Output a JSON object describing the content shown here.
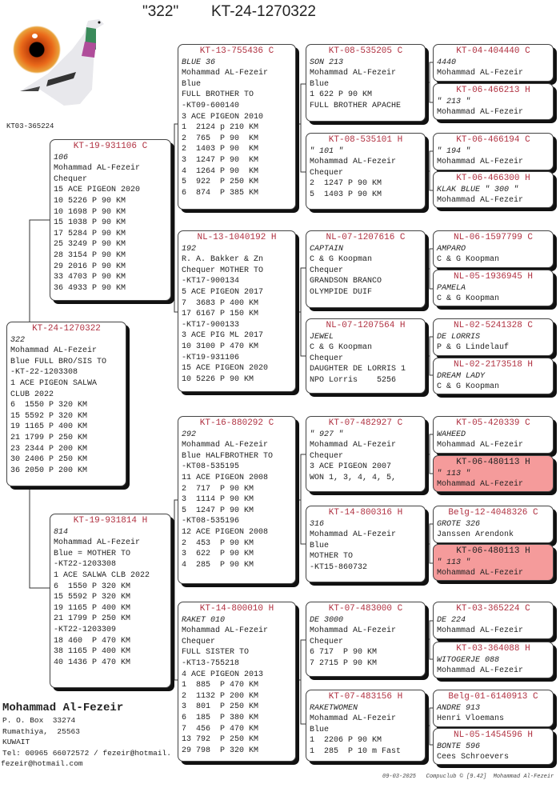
{
  "header": {
    "name": "\"322\"",
    "ring": "KT-24-1270322"
  },
  "photo": {
    "caption": "KT03-365224"
  },
  "pedigree": [
    {
      "id": "subject",
      "lines": [
        "KT-24-1270322",
        "322",
        "Mohammad AL-Fezeir",
        "Blue FULL BRO/SIS TO",
        "-KT-22-1203308",
        "1 ACE PIGEON SALWA",
        "CLUB 2022",
        "6  1550 P 320 KM",
        "15 5592 P 320 KM",
        "19 1165 P 400 KM",
        "21 1799 P 250 KM",
        "23 2344 P 200 KM",
        "30 2406 P 250 KM",
        "36 2050 P 200 KM"
      ]
    },
    {
      "id": "sire",
      "lines": [
        "KT-19-931106 C",
        "106",
        "Mohammad AL-Fezeir",
        "Chequer",
        "15 ACE PIGEON 2020",
        "10 5226 P 90 KM",
        "10 1698 P 90 KM",
        "15 1038 P 90 KM",
        "17 5284 P 90 KM",
        "25 3249 P 90 KM",
        "28 3154 P 90 KM",
        "29 2016 P 90 KM",
        "33 4703 P 90 KM",
        "36 4933 P 90 KM"
      ]
    },
    {
      "id": "dam",
      "lines": [
        "KT-19-931814 H",
        "814",
        "Mohammad AL-Fezeir",
        "Blue = MOTHER TO",
        "-KT22-1203308",
        "1 ACE SALWA CLB 2022",
        "6  1550 P 320 KM",
        "15 5592 P 320 KM",
        "19 1165 P 400 KM",
        "21 1799 P 250 KM",
        "-KT22-1203309",
        "18 460  P 470 KM",
        "38 1165 P 400 KM",
        "40 1436 P 470 KM"
      ]
    },
    {
      "id": "ss",
      "lines": [
        "KT-13-755436 C",
        "BLUE 36",
        "Mohammad AL-Fezeir",
        "Blue",
        "FULL BROTHER TO",
        "-KT09-600140",
        "3 ACE PIGEON 2010",
        "1  2124 p 210 KM",
        "2  765  P 90  KM",
        "2  1403 P 90  KM",
        "3  1247 P 90  KM",
        "4  1264 P 90  KM",
        "5  922  P 250 KM",
        "6  874  P 385 KM"
      ]
    },
    {
      "id": "sd",
      "lines": [
        "NL-13-1040192 H",
        "192",
        "R. A. Bakker & Zn",
        "Chequer MOTHER TO",
        "-KT17-900134",
        "5 ACE PIGEON 2017",
        "7  3683 P 400 KM",
        "17 6167 P 150 KM",
        "-KT17-900133",
        "3 ACE PIG ML 2017",
        "10 3100 P 470 KM",
        "-KT19-931106",
        "15 ACE PIGEON 2020",
        "10 5226 P 90 KM"
      ]
    },
    {
      "id": "ds",
      "lines": [
        "KT-16-880292 C",
        "292",
        "Mohammad AL-Fezeir",
        "Blue HALFBROTHER TO",
        "-KT08-535195",
        "11 ACE PIGEON 2008",
        "2  717  P 90 KM",
        "3  1114 P 90 KM",
        "5  1247 P 90 KM",
        "-KT08-535196",
        "12 ACE PIGEON 2008",
        "2  453  P 90 KM",
        "3  622  P 90 KM",
        "4  285  P 90 KM"
      ]
    },
    {
      "id": "dd",
      "lines": [
        "KT-14-800010 H",
        "RAKET 010",
        "Mohammad AL-Fezeir",
        "Chequer",
        "FULL SISTER TO",
        "-KT13-755218",
        "4 ACE PIGEON 2013",
        "1  885  P 470 KM",
        "2  1132 P 200 KM",
        "3  801  P 250 KM",
        "6  185  P 380 KM",
        "7  456  P 470 KM",
        "13 792  P 250 KM",
        "29 798  P 320 KM"
      ]
    },
    {
      "id": "sss",
      "lines": [
        "KT-08-535205 C",
        "SON 213",
        "Mohammad AL-Fezeir",
        "Blue",
        "1 622 P 90 KM",
        "FULL BROTHER APACHE"
      ]
    },
    {
      "id": "ssd",
      "lines": [
        "KT-08-535101 H",
        "\" 101 \"",
        "Mohammad AL-Fezeir",
        "Chequer",
        "2  1247 P 90 KM",
        "5  1403 P 90 KM"
      ]
    },
    {
      "id": "sds",
      "lines": [
        "NL-07-1207616 C",
        "CAPTAIN",
        "C & G Koopman",
        "Chequer",
        "GRANDSON BRANCO",
        "OLYMPIDE DUIF"
      ]
    },
    {
      "id": "sdd",
      "lines": [
        "NL-07-1207564 H",
        "JEWEL",
        "C & G Koopman",
        "Chequer",
        "DAUGHTER DE LORRIS 1",
        "NPO Lorris    5256"
      ]
    },
    {
      "id": "dss",
      "lines": [
        "KT-07-482927 C",
        "\" 927 \"",
        "Mohammad AL-Fezeir",
        "Chequer",
        "3 ACE PIGEON 2007",
        "WON 1, 3, 4, 4, 5,"
      ]
    },
    {
      "id": "dsd",
      "lines": [
        "KT-14-800316 H",
        "316",
        "Mohammad AL-Fezeir",
        "Blue",
        "MOTHER TO",
        "-KT15-860732"
      ]
    },
    {
      "id": "dds",
      "lines": [
        "KT-07-483000 C",
        "DE 3000",
        "Mohammad AL-Fezeir",
        "Chequer",
        "6 717  P 90 KM",
        "7 2715 P 90 KM"
      ]
    },
    {
      "id": "ddd",
      "lines": [
        "KT-07-483156 H",
        "RAKETWOMEN",
        "Mohammad AL-Fezeir",
        "Blue",
        "1  2206 P 90 KM",
        "1  285  P 10 m Fast"
      ]
    },
    {
      "id": "g1",
      "lines": [
        "KT-04-404440 C",
        "4440",
        "Mohammad AL-Fezeir"
      ]
    },
    {
      "id": "g2",
      "lines": [
        "KT-06-466213 H",
        "\" 213 \"",
        "Mohammad AL-Fezeir"
      ]
    },
    {
      "id": "g3",
      "lines": [
        "KT-06-466194 C",
        "\" 194 \"",
        "Mohammad AL-Fezeir"
      ]
    },
    {
      "id": "g4",
      "lines": [
        "KT-06-466300 H",
        "KLAK BLUE \" 300 \"",
        "Mohammad AL-Fezeir"
      ]
    },
    {
      "id": "g5",
      "lines": [
        "NL-06-1597799 C",
        "AMPARO",
        "C & G Koopman"
      ]
    },
    {
      "id": "g6",
      "lines": [
        "NL-05-1936945 H",
        "PAMELA",
        "C & G Koopman"
      ]
    },
    {
      "id": "g7",
      "lines": [
        "NL-02-5241328 C",
        "DE LORRIS",
        "P & G Lindelauf"
      ]
    },
    {
      "id": "g8",
      "lines": [
        "NL-02-2173518 H",
        "DREAM LADY",
        "C & G Koopman"
      ]
    },
    {
      "id": "g9",
      "lines": [
        "KT-05-420339 C",
        "WAHEED",
        "Mohammad AL-Fezeir"
      ]
    },
    {
      "id": "g10",
      "highlight": true,
      "lines": [
        "KT-06-480113 H",
        "\" 113 \"",
        "Mohammad AL-Fezeir"
      ]
    },
    {
      "id": "g11",
      "lines": [
        "Belg-12-4048326 C",
        "GROTE 326",
        "Janssen Arendonk"
      ]
    },
    {
      "id": "g12",
      "highlight": true,
      "lines": [
        "KT-06-480113 H",
        "\" 113 \"",
        "Mohammad AL-Fezeir"
      ]
    },
    {
      "id": "g13",
      "lines": [
        "KT-03-365224 C",
        "DE 224",
        "Mohammad AL-Fezeir"
      ]
    },
    {
      "id": "g14",
      "lines": [
        "KT-03-364088 H",
        "WITOGERJE 088",
        "Mohammad AL-Fezeir"
      ]
    },
    {
      "id": "g15",
      "lines": [
        "Belg-01-6140913 C",
        "ANDRE 913",
        "Henri Vloemans"
      ]
    },
    {
      "id": "g16",
      "lines": [
        "NL-05-1454596 H",
        "BONTE 596",
        "Cees Schroevers"
      ]
    }
  ],
  "contact": {
    "name": "Mohammad Al-Fezeir",
    "address1": "P. O. Box  33274",
    "address2": "Rumathiya,  25563",
    "country": "KUWAIT",
    "tel": "Tel: 00965 66072572 / fezeir@hotmail.",
    "email": "fezeir@hotmail.com"
  },
  "footer": {
    "date": "09-03-2025",
    "software": "Compuclub © [9.42]",
    "owner": "Mohammad Al-Fezeir"
  },
  "colors": {
    "ring": "#b03040",
    "highlight": "#f59b9b"
  }
}
